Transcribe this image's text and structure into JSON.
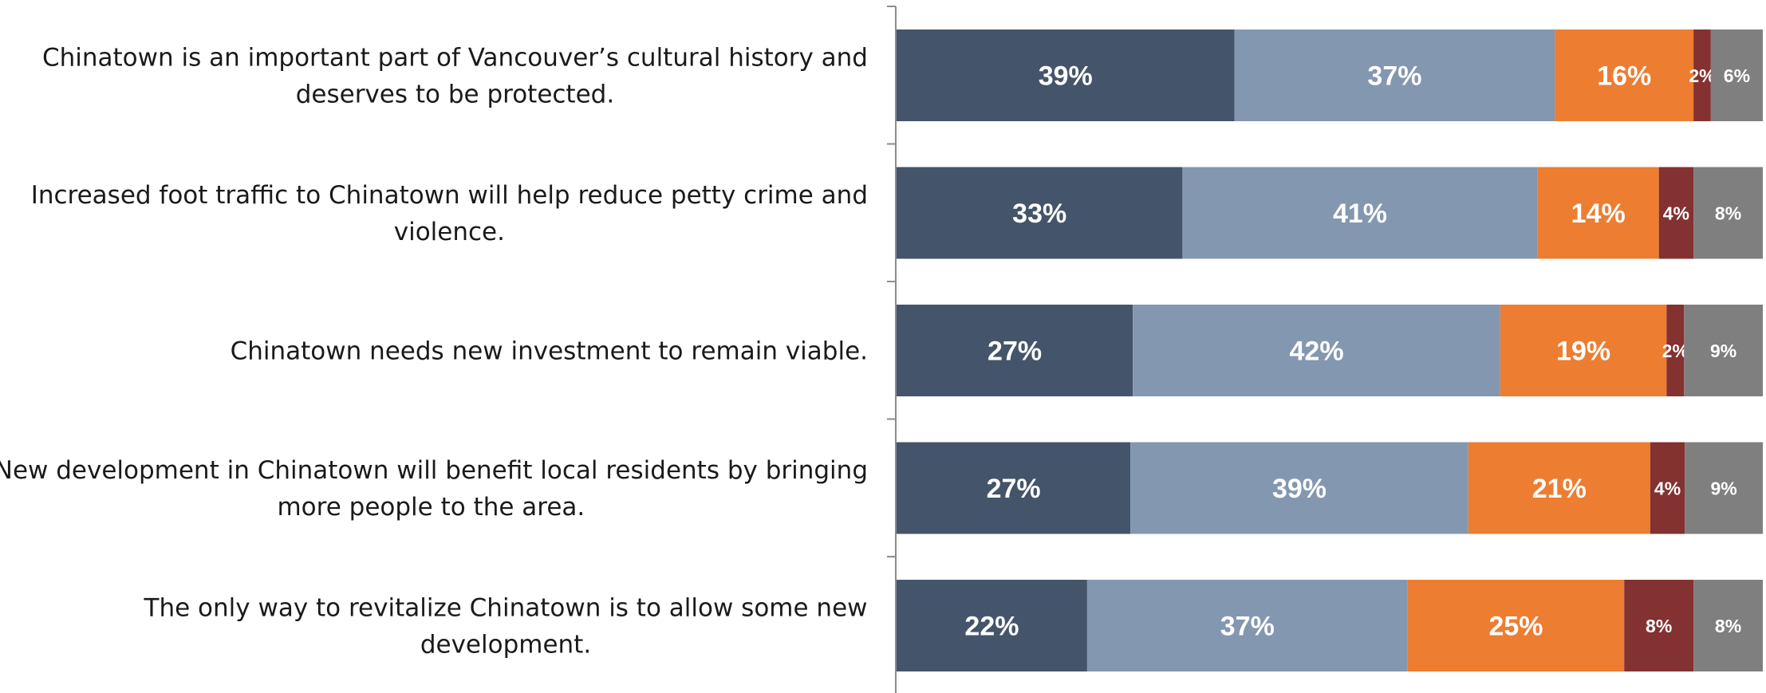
{
  "chart_data": {
    "type": "bar",
    "orientation": "horizontal",
    "stacked": true,
    "normalized": true,
    "title": "",
    "xlabel": "",
    "ylabel": "",
    "xlim": [
      0,
      100
    ],
    "grid": false,
    "legend": "none",
    "categories": [
      [
        "Chinatown is an important part of Vancouver’s cultural history and",
        "deserves to be protected."
      ],
      [
        "Increased foot traffic to Chinatown will help reduce petty crime and",
        "violence."
      ],
      [
        "Chinatown needs new investment to remain viable."
      ],
      [
        "New development in Chinatown will benefit local residents by bringing",
        "more people to the area."
      ],
      [
        "The only way to revitalize Chinatown is to allow some new",
        "development."
      ]
    ],
    "series": [
      {
        "color": "#44546a",
        "values": [
          39,
          33,
          27,
          27,
          22
        ],
        "labels": [
          "39%",
          "33%",
          "27%",
          "27%",
          "22%"
        ]
      },
      {
        "color": "#8497b0",
        "values": [
          37,
          41,
          42,
          39,
          37
        ],
        "labels": [
          "37%",
          "41%",
          "42%",
          "39%",
          "37%"
        ]
      },
      {
        "color": "#ed7d31",
        "values": [
          16,
          14,
          19,
          21,
          25
        ],
        "labels": [
          "16%",
          "14%",
          "19%",
          "21%",
          "25%"
        ]
      },
      {
        "color": "#843131",
        "values": [
          2,
          4,
          2,
          4,
          8
        ],
        "labels": [
          "2%",
          "4%",
          "2%",
          "4%",
          "8%"
        ]
      },
      {
        "color": "#7f7f7f",
        "values": [
          6,
          8,
          9,
          9,
          8
        ],
        "labels": [
          "6%",
          "8%",
          "9%",
          "9%",
          "8%"
        ]
      }
    ]
  }
}
